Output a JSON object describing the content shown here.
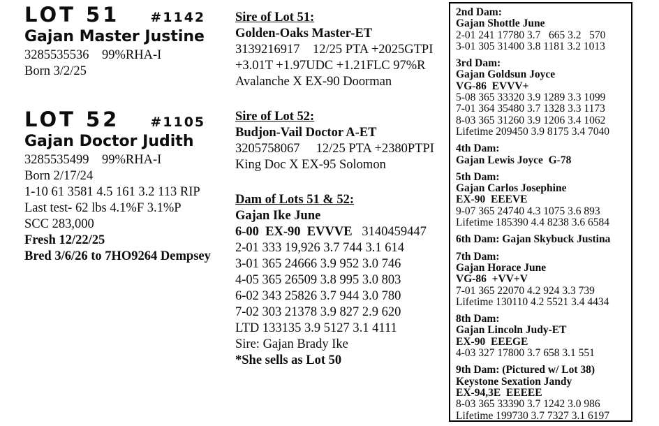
{
  "lots": [
    {
      "lot_label": "LOT 51",
      "lot_number": "#1142",
      "name": "Gajan Master Justine",
      "reg_line": "3285535536    99%RHA-I",
      "lines": [
        "Born 3/2/25"
      ]
    },
    {
      "lot_label": "LOT 52",
      "lot_number": "#1105",
      "name": "Gajan Doctor Judith",
      "reg_line": "3285535499    99%RHA-I",
      "lines": [
        "Born 2/17/24",
        "1-10 61 3581 4.5 161 3.2 113 RIP",
        "Last test- 62 lbs 4.1%F 3.1%P",
        "SCC 283,000"
      ],
      "bold_lines": [
        "Fresh 12/22/25",
        "Bred 3/6/26 to 7HO9264 Dempsey"
      ]
    }
  ],
  "middle": {
    "sections": [
      {
        "heading": "Sire of Lot 51:",
        "name": "Golden-Oaks Master-ET",
        "lines": [
          "3139216917    12/25 PTA +2025GTPI",
          "+3.01T +1.97UDC +1.21FLC 97%R",
          "Avalanche X EX-90 Doorman"
        ]
      },
      {
        "heading": "Sire of Lot 52:",
        "name": "Budjon-Vail Doctor A-ET",
        "lines": [
          "3205758067     12/25 PTA +2380PTPI",
          "King Doc X EX-95 Solomon"
        ]
      },
      {
        "heading": "Dam of Lots 51 & 52:",
        "name": "Gajan Ike June",
        "score_bold": "6-00  EX-90  EVVVE",
        "score_reg": "   3140459447",
        "lines": [
          "2-01 333 19,926 3.7 744 3.1 614",
          "3-01 365 24666 3.9 952 3.0 746",
          "4-05 365 26509 3.8 995 3.0 803",
          "6-02 343 25826 3.7 944 3.0 780",
          "7-02 303 21378 3.9 827 2.9 620",
          "LTD 133135 3.9 5127 3.1 4111",
          "Sire: Gajan Brady Ike"
        ],
        "footer_bold": "*She sells as Lot 50"
      }
    ]
  },
  "dam_box": {
    "sections": [
      {
        "bold_lines": [
          "2nd Dam:",
          "Gajan Shottle June"
        ],
        "lines": [
          "2-01 241 17780 3.7   665 3.2   570",
          "3-01 305 31400 3.8 1181 3.2 1013"
        ]
      },
      {
        "bold_lines": [
          "3rd Dam:",
          "Gajan Goldsun Joyce",
          "VG-86  EVVV+"
        ],
        "lines": [
          "5-08 365 33320 3.9 1289 3.3 1099",
          "7-01 364 35480 3.7 1328 3.3 1173",
          "8-03 365 31260 3.9 1206 3.4 1062",
          "Lifetime 209450 3.9 8175 3.4 7040"
        ]
      },
      {
        "bold_lines": [
          "4th Dam:",
          "Gajan Lewis Joyce  G-78"
        ],
        "lines": []
      },
      {
        "bold_lines": [
          "5th Dam:",
          "Gajan Carlos Josephine",
          "EX-90  EEEVE"
        ],
        "lines": [
          "9-07 365 24740 4.3 1075 3.6 893",
          "Lifetime 185390 4.4 8238 3.6 6584"
        ]
      },
      {
        "bold_lines": [
          "6th Dam: Gajan Skybuck Justina"
        ],
        "lines": []
      },
      {
        "bold_lines": [
          "7th Dam:",
          "Gajan Horace June",
          "VG-86  +VV+V"
        ],
        "lines": [
          "7-01 365 22070 4.2 924 3.3 739",
          "Lifetime 130110 4.2 5521 3.4 4434"
        ]
      },
      {
        "bold_lines": [
          "8th Dam:",
          "Gajan Lincoln Judy-ET",
          "EX-90  EEEGE"
        ],
        "lines": [
          "4-03 327 17800 3.7 658 3.1 551"
        ]
      },
      {
        "bold_lines": [
          "9th Dam: (Pictured w/ Lot 38)",
          "Keystone Sexation Jandy",
          "EX-94,3E  EEEEE"
        ],
        "lines": [
          "8-03 365 33390 3.7 1242 3.0 986",
          "Lifetime 199730 3.7 7327 3.1 6197"
        ]
      }
    ]
  }
}
